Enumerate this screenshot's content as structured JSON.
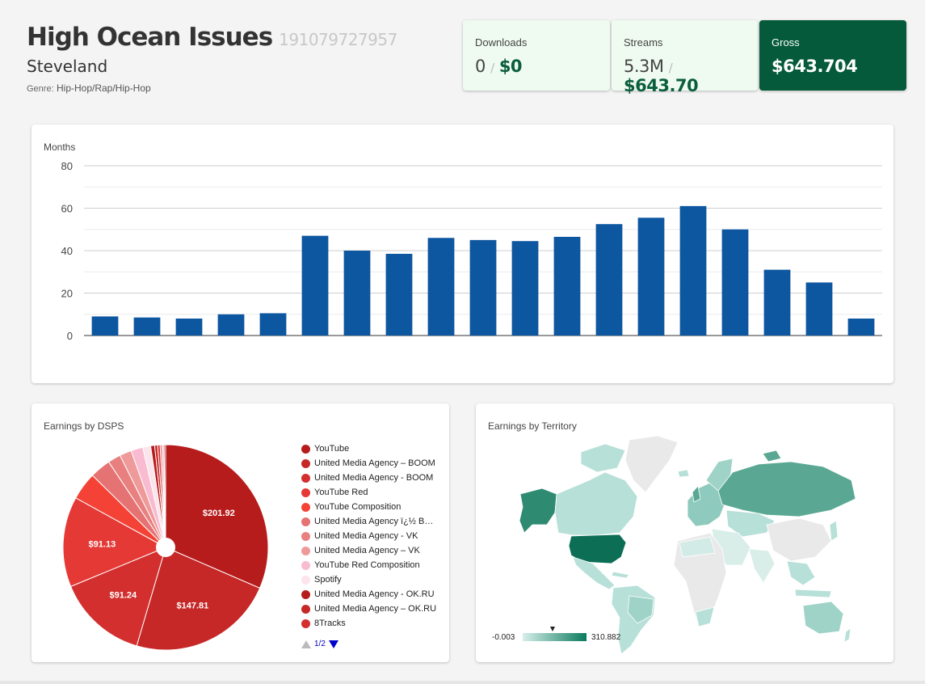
{
  "release": {
    "title": "High Ocean Issues",
    "upc": "191079727957",
    "artist": "Steveland",
    "genre_label": "Genre:",
    "genre_value": "Hip-Hop/Rap/Hip-Hop"
  },
  "stats": {
    "downloads": {
      "label": "Downloads",
      "count": "0",
      "sep": "/",
      "amount": "$0"
    },
    "streams": {
      "label": "Streams",
      "count": "5.3M",
      "sep": "/",
      "amount": "$643.70"
    },
    "gross": {
      "label": "Gross",
      "amount": "$643.704"
    }
  },
  "colors": {
    "bar": "#0d56a0",
    "accent_dark": "#045a3a",
    "light_green": "#effbf0",
    "money_green": "#0b5e3d",
    "map_low": "#b7e0d8",
    "map_high": "#0b7a5e",
    "map_nodata": "#e9e9e9"
  },
  "months_chart": {
    "title": "Months",
    "chart_data": {
      "type": "bar",
      "title": "Months",
      "xlabel": "",
      "ylabel": "",
      "ylim": [
        0,
        80
      ],
      "yticks": [
        "0",
        "20",
        "40",
        "60",
        "80"
      ],
      "grid": true,
      "categories": [
        "",
        "",
        "",
        "",
        "",
        "",
        "",
        "",
        "",
        "",
        "",
        "",
        "",
        "",
        "",
        "",
        "",
        "",
        ""
      ],
      "values": [
        9,
        8.5,
        8,
        10,
        10.5,
        47,
        40,
        38.5,
        46,
        45,
        44.5,
        46.5,
        52.5,
        55.5,
        61,
        50,
        31,
        25,
        8
      ]
    }
  },
  "dsps_chart": {
    "title": "Earnings by DSPS",
    "chart_data": {
      "type": "pie",
      "title": "Earnings by DSPS",
      "slices": [
        {
          "label": "YouTube",
          "value": 201.92,
          "display": "$201.92",
          "color": "#b71c1c"
        },
        {
          "label": "United Media Agency – BOOM",
          "value": 147.81,
          "display": "$147.81",
          "color": "#c62828"
        },
        {
          "label": "United Media Agency - BOOM",
          "value": 91.24,
          "display": "$91.24",
          "color": "#d32f2f"
        },
        {
          "label": "YouTube Red",
          "value": 91.13,
          "display": "$91.13",
          "color": "#e53935"
        },
        {
          "label": "YouTube Composition",
          "value": 28,
          "display": "",
          "color": "#f44336"
        },
        {
          "label": "United Media Agency ï¿½ B…",
          "value": 21,
          "display": "",
          "color": "#e57373"
        },
        {
          "label": "United Media Agency - VK",
          "value": 13,
          "display": "",
          "color": "#e88080"
        },
        {
          "label": "United Media Agency – VK",
          "value": 12,
          "display": "",
          "color": "#ef9a9a"
        },
        {
          "label": "YouTube Red Composition",
          "value": 12,
          "display": "",
          "color": "#f8bbd0"
        },
        {
          "label": "Spotify",
          "value": 8,
          "display": "",
          "color": "#fce4ec"
        },
        {
          "label": "United Media Agency - OK.RU",
          "value": 4,
          "display": "",
          "color": "#b71c1c"
        },
        {
          "label": "United Media Agency – OK.RU",
          "value": 3,
          "display": "",
          "color": "#c62828"
        },
        {
          "label": "8Tracks",
          "value": 2.5,
          "display": "",
          "color": "#d32f2f"
        },
        {
          "label": "",
          "value": 2,
          "display": "",
          "color": "#e57373"
        },
        {
          "label": "",
          "value": 2,
          "display": "",
          "color": "#f8bbd0"
        },
        {
          "label": "",
          "value": 1.5,
          "display": "",
          "color": "#b71c1c"
        }
      ]
    },
    "pager": "1/2"
  },
  "territory_chart": {
    "title": "Earnings by Territory",
    "min_label": "-0.003",
    "max_label": "310.882"
  }
}
